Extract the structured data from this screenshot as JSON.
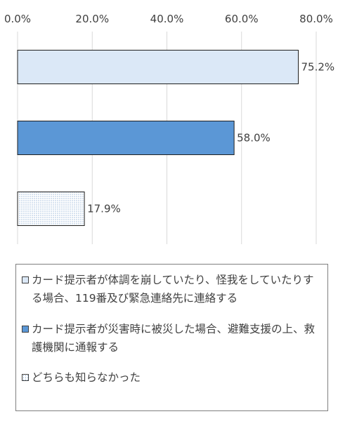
{
  "chart_data": {
    "type": "bar",
    "orientation": "horizontal",
    "categories": [
      "カード提示者が体調を崩していたり、怪我をしていたりする場合、119番及び緊急連絡先に連絡する",
      "カード提示者が災害時に被災した場合、避難支援の上、救護機関に通報する",
      "どちらも知らなかった"
    ],
    "values": [
      75.2,
      58.0,
      17.9
    ],
    "data_labels": [
      "75.2%",
      "58.0%",
      "17.9%"
    ],
    "xlim": [
      0,
      80
    ],
    "tick_values": [
      0,
      20,
      40,
      60,
      80
    ],
    "tick_labels": [
      "0.0%",
      "20.0%",
      "40.0%",
      "60.0%",
      "80.0%"
    ],
    "axis_position": "top",
    "grid": true,
    "legend_position": "bottom",
    "colors": [
      "#dbe8f7",
      "#5b97d6",
      "#ffffff"
    ],
    "patterns": [
      "solid",
      "solid",
      "dotted"
    ]
  },
  "legend": {
    "items": [
      {
        "label": "カード提示者が体調を崩していたり、怪我をしていたりする場合、119番及び緊急連絡先に連絡する"
      },
      {
        "label": "カード提示者が災害時に被災した場合、避難支援の上、救護機関に通報する"
      },
      {
        "label": "どちらも知らなかった"
      }
    ]
  }
}
